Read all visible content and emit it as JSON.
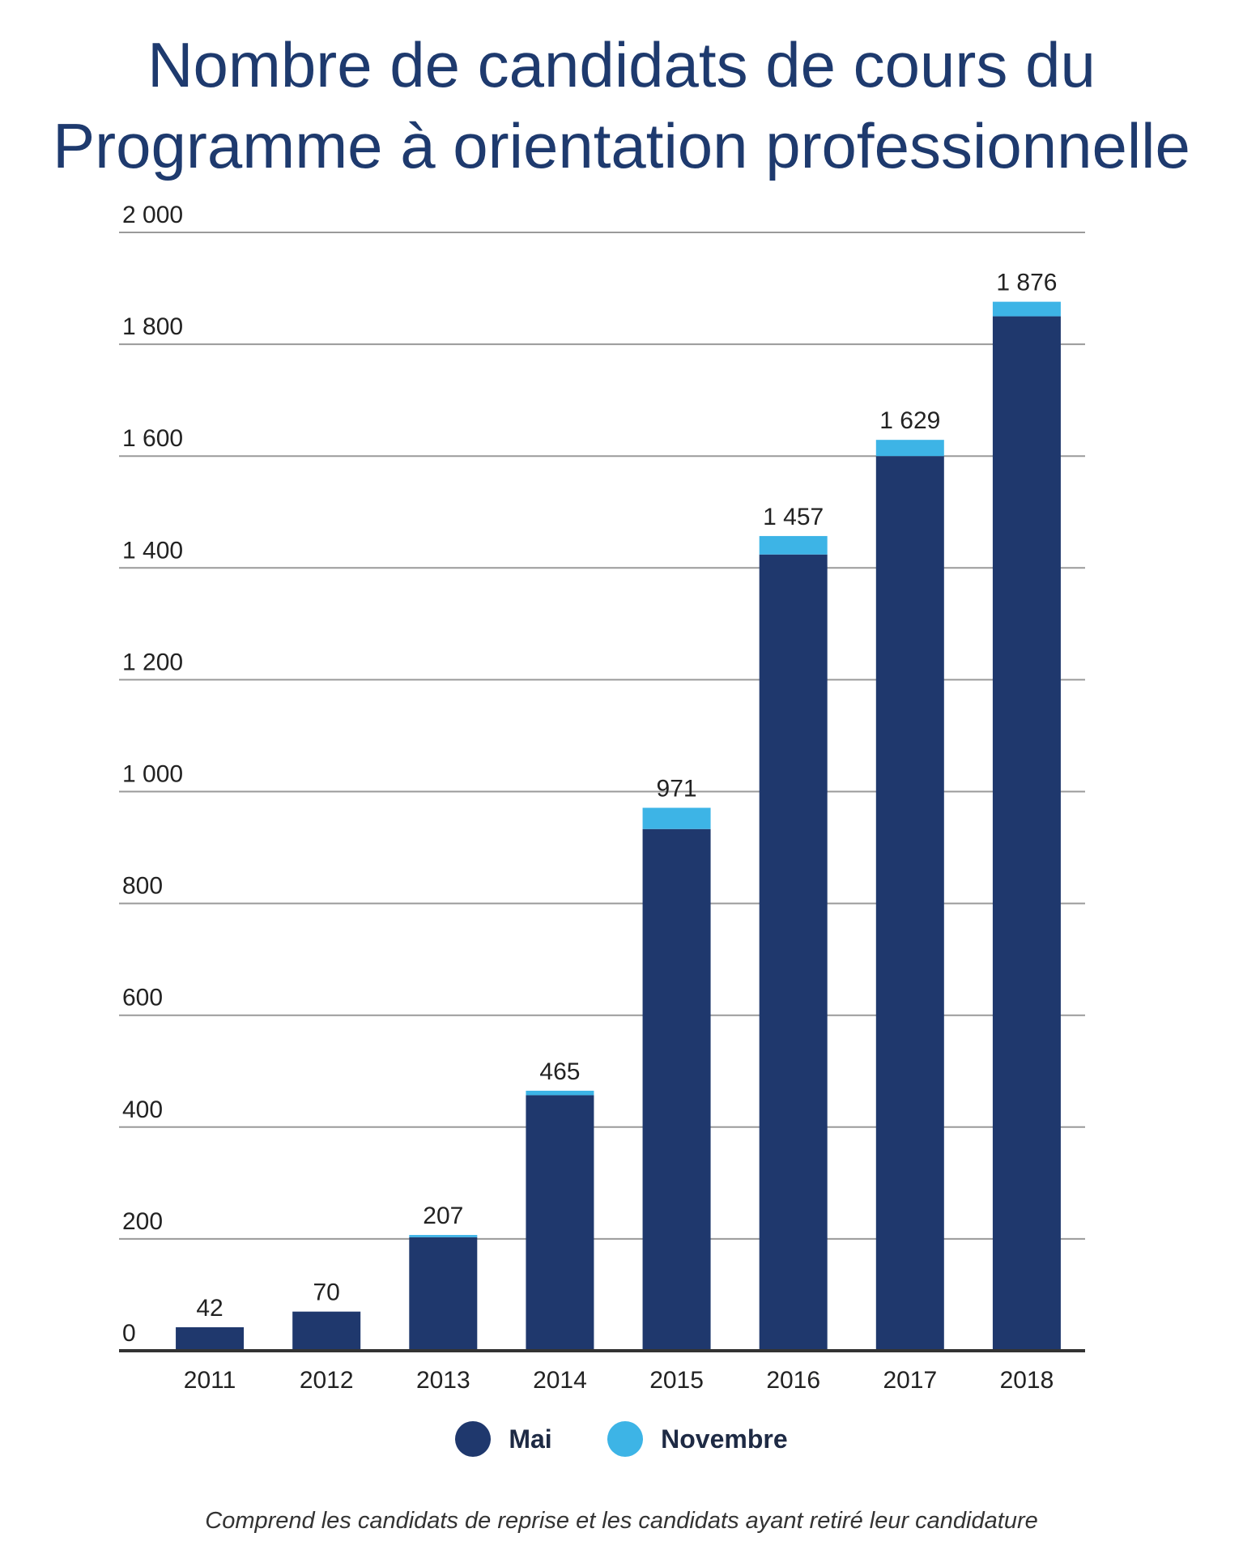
{
  "chart_data": {
    "type": "bar",
    "stacked": true,
    "title_lines": [
      "Nombre de candidats de cours du",
      "Programme à orientation professionnelle"
    ],
    "categories": [
      "2011",
      "2012",
      "2013",
      "2014",
      "2015",
      "2016",
      "2017",
      "2018"
    ],
    "series": [
      {
        "name": "Mai",
        "color": "#1f386d",
        "values": [
          42,
          70,
          203,
          457,
          933,
          1424,
          1600,
          1850
        ]
      },
      {
        "name": "Novembre",
        "color": "#3db4e6",
        "values": [
          0,
          0,
          4,
          8,
          38,
          33,
          29,
          26
        ]
      }
    ],
    "totals": [
      42,
      70,
      207,
      465,
      971,
      1457,
      1629,
      1876
    ],
    "total_labels": [
      "42",
      "70",
      "207",
      "465",
      "971",
      "1 457",
      "1 629",
      "1 876"
    ],
    "yticks": [
      0,
      200,
      400,
      600,
      800,
      1000,
      1200,
      1400,
      1600,
      1800,
      2000
    ],
    "ytick_labels": [
      "0",
      "200",
      "400",
      "600",
      "800",
      "1 000",
      "1 200",
      "1 400",
      "1 600",
      "1 800",
      "2 000"
    ],
    "ylim": [
      0,
      2000
    ],
    "grid": true,
    "legend_position": "bottom",
    "footnote": "Comprend les candidats de reprise et les candidats ayant retiré leur candidature"
  }
}
